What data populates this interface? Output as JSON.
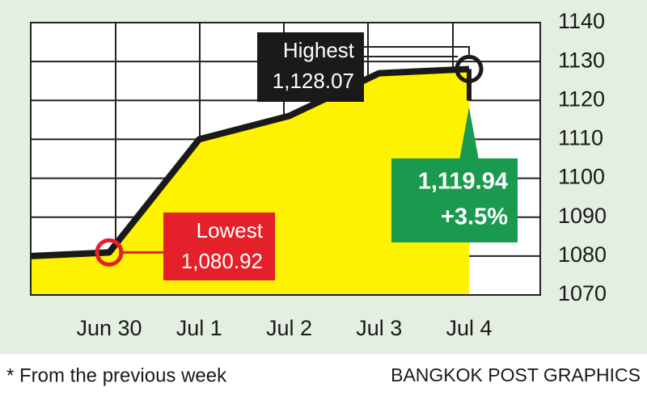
{
  "chart_data": {
    "type": "area",
    "categories": [
      null,
      "Jun 30",
      "Jul 1",
      "Jul 2",
      "Jul 3",
      "Jul 4"
    ],
    "values": [
      1080,
      1080.92,
      1110,
      1116,
      1127,
      1128.07
    ],
    "color": "#fff200",
    "line_color": "#1a1a1a",
    "ylim": [
      1070,
      1140
    ],
    "yticks": [
      1070,
      1080,
      1090,
      1100,
      1110,
      1120,
      1130,
      1140
    ],
    "grid": true,
    "annotations": [
      {
        "label": "Highest",
        "value": 1128.07,
        "value_label": "1,128.07",
        "color": "#1a1a1a"
      },
      {
        "label": "Lowest",
        "value": 1080.92,
        "value_label": "1,080.92",
        "color": "#e4202a"
      }
    ],
    "close": {
      "value": 1119.94,
      "value_label": "1,119.94",
      "change": "+3.5%",
      "color": "#1a9a4e"
    },
    "footnote": "* From the previous week",
    "source": "BANGKOK POST GRAPHICS"
  }
}
